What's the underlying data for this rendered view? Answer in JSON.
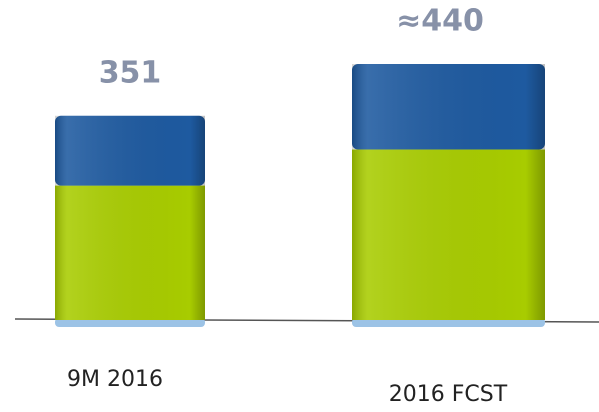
{
  "chart_data": {
    "type": "bar",
    "categories": [
      "9M 2016",
      "2016 FCST"
    ],
    "series": [
      {
        "color": "#a8cc00",
        "values": [
          231,
          293
        ]
      },
      {
        "color": "#1e5aa0",
        "values": [
          120,
          147
        ]
      }
    ],
    "totals": [
      351,
      440
    ],
    "total_labels": [
      "351",
      "≈440"
    ],
    "ylim": [
      0,
      550
    ]
  }
}
